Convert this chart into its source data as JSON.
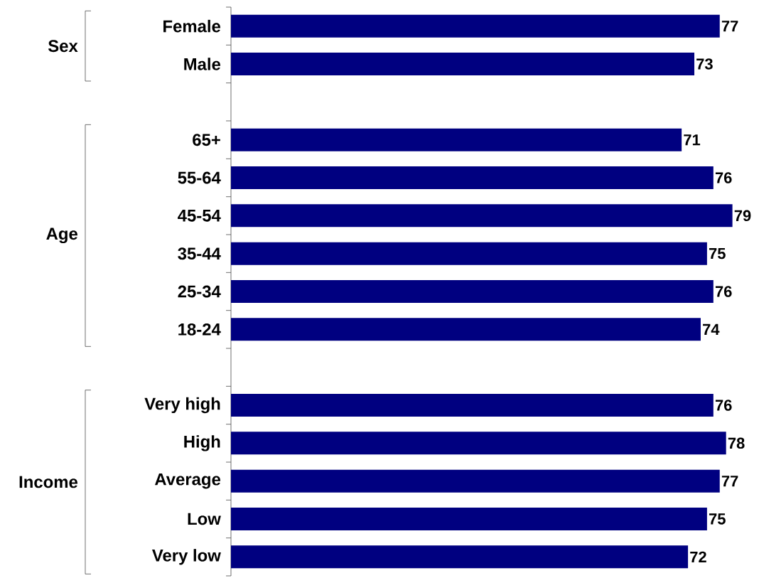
{
  "chart_data": {
    "type": "bar",
    "orientation": "horizontal",
    "categories": [
      "Female",
      "Male",
      null,
      "65+",
      "55-64",
      "45-54",
      "35-44",
      "25-34",
      "18-24",
      null,
      "Very high",
      "High",
      "Average",
      "Low",
      "Very low"
    ],
    "values": [
      77,
      73,
      null,
      71,
      76,
      79,
      75,
      76,
      74,
      null,
      76,
      78,
      77,
      75,
      72
    ],
    "color": "#000080",
    "data_labels": true,
    "annotations": [
      "Sex",
      "Age",
      "Income"
    ]
  }
}
